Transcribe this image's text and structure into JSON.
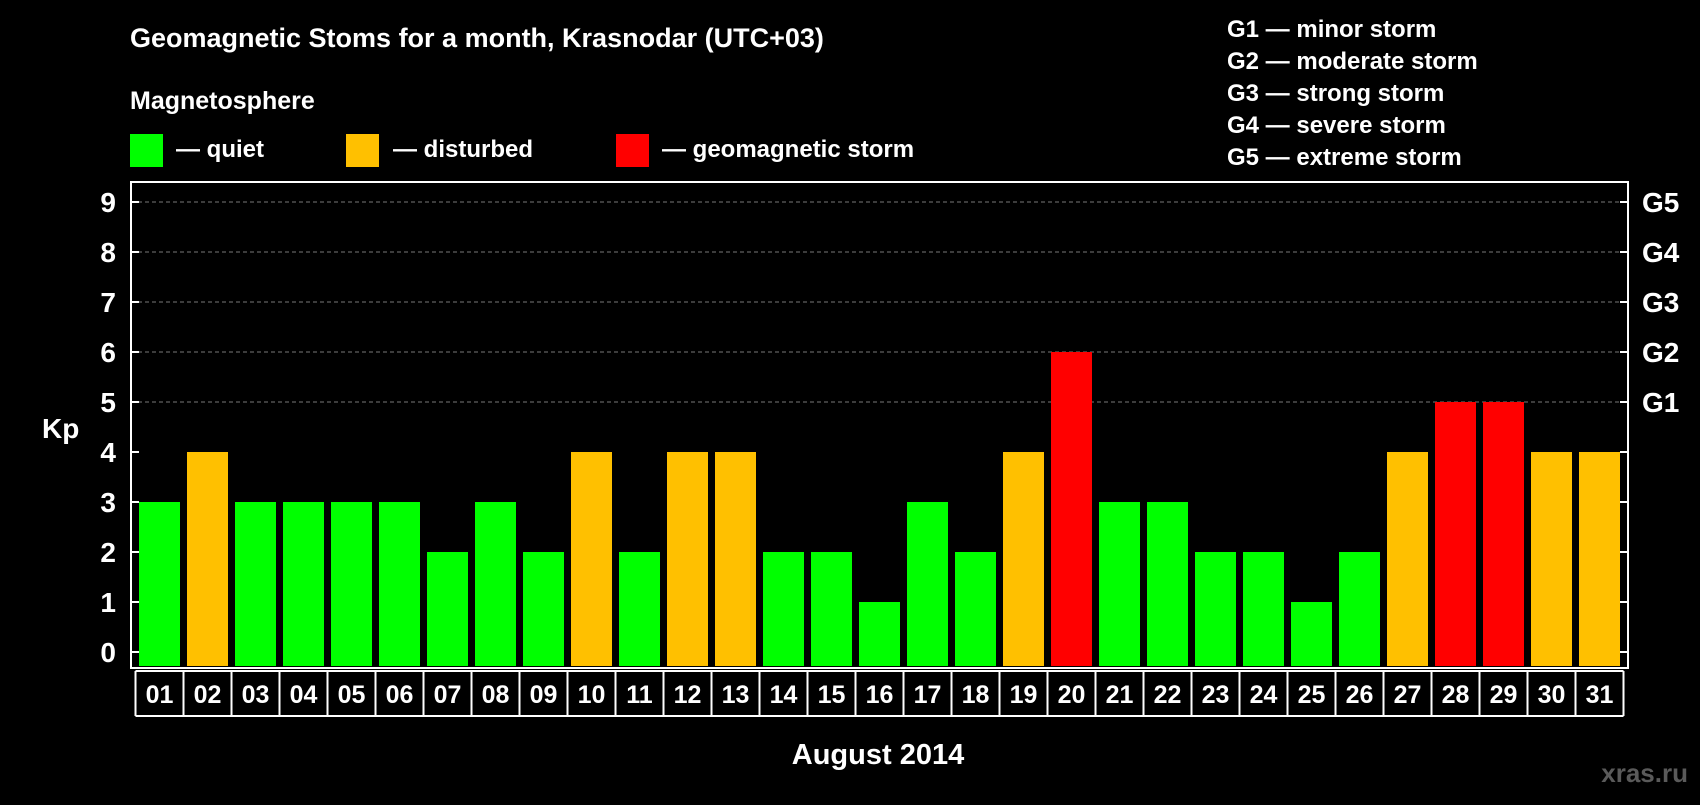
{
  "title": "Geomagnetic Stoms for a month, Krasnodar (UTC+03)",
  "legend": {
    "heading": "Magnetosphere",
    "items": [
      {
        "label": "— quiet",
        "color": "#00ff00"
      },
      {
        "label": "— disturbed",
        "color": "#ffc000"
      },
      {
        "label": "— geomagnetic storm",
        "color": "#ff0000"
      }
    ]
  },
  "storm_scale": [
    "G1 — minor storm",
    "G2 — moderate storm",
    "G3 — strong storm",
    "G4 — severe storm",
    "G5 — extreme storm"
  ],
  "watermark": "xras.ru",
  "chart_data": {
    "type": "bar",
    "title": "Geomagnetic Stoms for a month, Krasnodar (UTC+03)",
    "xlabel": "August 2014",
    "ylabel": "Kp",
    "ylim": [
      0,
      9
    ],
    "yticks": [
      "0",
      "1",
      "2",
      "3",
      "4",
      "5",
      "6",
      "7",
      "8",
      "9"
    ],
    "right_ticks": [
      {
        "value": 5,
        "label": "G1"
      },
      {
        "value": 6,
        "label": "G2"
      },
      {
        "value": 7,
        "label": "G3"
      },
      {
        "value": 8,
        "label": "G4"
      },
      {
        "value": 9,
        "label": "G5"
      }
    ],
    "grid": true,
    "categories": [
      "01",
      "02",
      "03",
      "04",
      "05",
      "06",
      "07",
      "08",
      "09",
      "10",
      "11",
      "12",
      "13",
      "14",
      "15",
      "16",
      "17",
      "18",
      "19",
      "20",
      "21",
      "22",
      "23",
      "24",
      "25",
      "26",
      "27",
      "28",
      "29",
      "30",
      "31"
    ],
    "values": [
      3,
      4,
      3,
      3,
      3,
      3,
      2,
      3,
      2,
      4,
      2,
      4,
      4,
      2,
      2,
      1,
      3,
      2,
      4,
      6,
      3,
      3,
      2,
      2,
      1,
      2,
      4,
      5,
      5,
      4,
      4
    ],
    "colors": {
      "quiet": "#00ff00",
      "disturbed": "#ffc000",
      "storm": "#ff0000"
    }
  }
}
